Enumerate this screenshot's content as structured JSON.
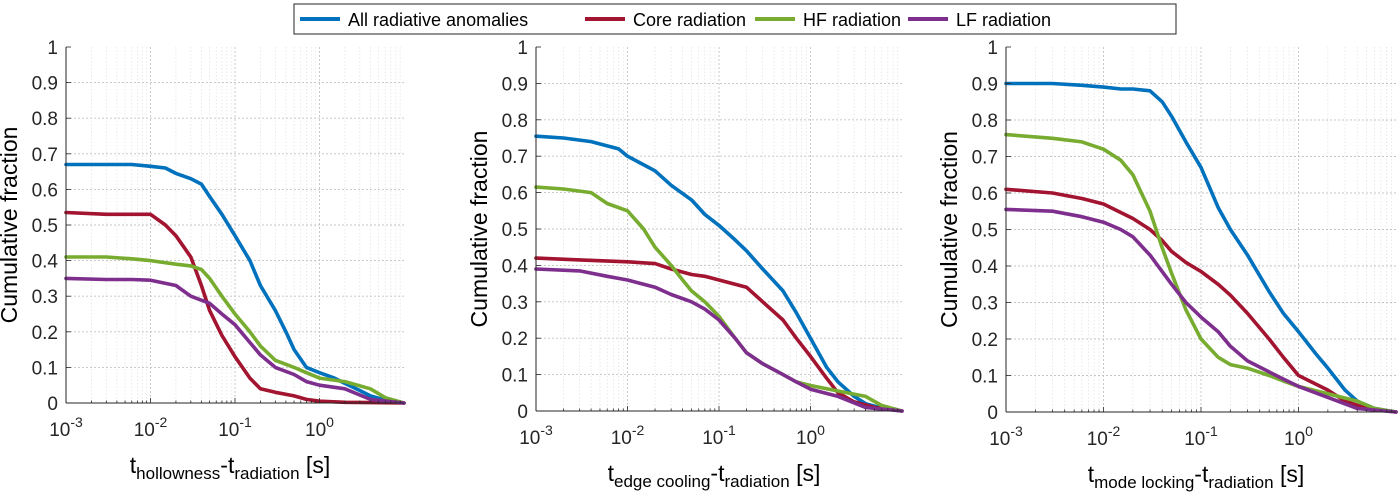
{
  "legend": {
    "placement": "top-center",
    "entries": [
      {
        "label": "All radiative anomalies",
        "color": "#0072BD"
      },
      {
        "label": "Core radiation",
        "color": "#A2142F"
      },
      {
        "label": "HF radiation",
        "color": "#77AC30"
      },
      {
        "label": "LF radiation",
        "color": "#7E2F8E"
      }
    ]
  },
  "chart_data": [
    {
      "type": "line",
      "xscale": "log",
      "xlim": [
        0.001,
        10
      ],
      "ylim": [
        0,
        1
      ],
      "grid": true,
      "ylabel": "Cumulative fraction",
      "xlabel": {
        "main1": "t",
        "sub1": "hollowness",
        "sep": "-",
        "main2": "t",
        "sub2": "radiation",
        "unit": " [s]"
      },
      "xtick_labels": [
        {
          "base": "10",
          "exp": "-3"
        },
        {
          "base": "10",
          "exp": "-2"
        },
        {
          "base": "10",
          "exp": "-1"
        },
        {
          "base": "10",
          "exp": "0"
        }
      ],
      "ytick_labels": [
        "0",
        "0.1",
        "0.2",
        "0.3",
        "0.4",
        "0.5",
        "0.6",
        "0.7",
        "0.8",
        "0.9",
        "1"
      ],
      "series": [
        {
          "name": "All radiative anomalies",
          "x": [
            0.001,
            0.003,
            0.006,
            0.01,
            0.015,
            0.02,
            0.03,
            0.04,
            0.05,
            0.07,
            0.1,
            0.15,
            0.2,
            0.3,
            0.4,
            0.5,
            0.7,
            1,
            1.5,
            2,
            3,
            4,
            6,
            10
          ],
          "y": [
            0.67,
            0.67,
            0.67,
            0.665,
            0.66,
            0.645,
            0.63,
            0.615,
            0.58,
            0.53,
            0.47,
            0.4,
            0.33,
            0.26,
            0.2,
            0.15,
            0.1,
            0.085,
            0.07,
            0.055,
            0.035,
            0.02,
            0.008,
            0
          ]
        },
        {
          "name": "Core radiation",
          "x": [
            0.001,
            0.003,
            0.006,
            0.01,
            0.015,
            0.02,
            0.03,
            0.04,
            0.05,
            0.07,
            0.1,
            0.15,
            0.2,
            0.3,
            0.5,
            0.7,
            1,
            2,
            4,
            10
          ],
          "y": [
            0.535,
            0.53,
            0.53,
            0.53,
            0.5,
            0.47,
            0.41,
            0.33,
            0.26,
            0.19,
            0.13,
            0.07,
            0.04,
            0.03,
            0.02,
            0.01,
            0.005,
            0.002,
            0.001,
            0
          ]
        },
        {
          "name": "HF radiation",
          "x": [
            0.001,
            0.003,
            0.006,
            0.01,
            0.02,
            0.03,
            0.04,
            0.05,
            0.07,
            0.1,
            0.15,
            0.2,
            0.3,
            0.5,
            0.7,
            1,
            2,
            4,
            6,
            10
          ],
          "y": [
            0.41,
            0.41,
            0.405,
            0.4,
            0.39,
            0.385,
            0.375,
            0.35,
            0.3,
            0.25,
            0.2,
            0.16,
            0.12,
            0.1,
            0.085,
            0.07,
            0.06,
            0.04,
            0.015,
            0
          ]
        },
        {
          "name": "LF radiation",
          "x": [
            0.001,
            0.003,
            0.006,
            0.01,
            0.02,
            0.03,
            0.05,
            0.07,
            0.1,
            0.15,
            0.2,
            0.3,
            0.5,
            0.7,
            1,
            2,
            4,
            10
          ],
          "y": [
            0.35,
            0.347,
            0.347,
            0.345,
            0.33,
            0.3,
            0.28,
            0.25,
            0.22,
            0.17,
            0.135,
            0.1,
            0.08,
            0.06,
            0.05,
            0.04,
            0.01,
            0
          ]
        }
      ]
    },
    {
      "type": "line",
      "xscale": "log",
      "xlim": [
        0.001,
        10
      ],
      "ylim": [
        0,
        1
      ],
      "grid": true,
      "ylabel": "Cumulative fraction",
      "xlabel": {
        "main1": "t",
        "sub1": "edge cooling",
        "sep": "-",
        "main2": "t",
        "sub2": "radiation",
        "unit": " [s]"
      },
      "xtick_labels": [
        {
          "base": "10",
          "exp": "-3"
        },
        {
          "base": "10",
          "exp": "-2"
        },
        {
          "base": "10",
          "exp": "-1"
        },
        {
          "base": "10",
          "exp": "0"
        }
      ],
      "ytick_labels": [
        "0",
        "0.1",
        "0.2",
        "0.3",
        "0.4",
        "0.5",
        "0.6",
        "0.7",
        "0.8",
        "0.9",
        "1"
      ],
      "series": [
        {
          "name": "All radiative anomalies",
          "x": [
            0.001,
            0.002,
            0.004,
            0.008,
            0.01,
            0.02,
            0.03,
            0.05,
            0.07,
            0.1,
            0.15,
            0.2,
            0.3,
            0.5,
            0.7,
            1,
            1.5,
            2,
            3,
            4,
            6,
            10
          ],
          "y": [
            0.755,
            0.75,
            0.74,
            0.72,
            0.7,
            0.66,
            0.62,
            0.58,
            0.54,
            0.51,
            0.47,
            0.44,
            0.39,
            0.33,
            0.27,
            0.2,
            0.12,
            0.08,
            0.04,
            0.02,
            0.008,
            0
          ]
        },
        {
          "name": "Core radiation",
          "x": [
            0.001,
            0.003,
            0.01,
            0.02,
            0.03,
            0.05,
            0.07,
            0.1,
            0.2,
            0.3,
            0.5,
            0.7,
            1,
            1.5,
            2,
            3,
            5,
            10
          ],
          "y": [
            0.42,
            0.415,
            0.41,
            0.405,
            0.39,
            0.375,
            0.37,
            0.36,
            0.34,
            0.3,
            0.25,
            0.2,
            0.15,
            0.09,
            0.05,
            0.025,
            0.01,
            0
          ]
        },
        {
          "name": "HF radiation",
          "x": [
            0.001,
            0.002,
            0.004,
            0.006,
            0.01,
            0.015,
            0.02,
            0.03,
            0.04,
            0.05,
            0.07,
            0.1,
            0.15,
            0.2,
            0.3,
            0.5,
            0.7,
            1,
            2,
            4,
            6,
            10
          ],
          "y": [
            0.615,
            0.61,
            0.6,
            0.57,
            0.55,
            0.5,
            0.45,
            0.4,
            0.36,
            0.33,
            0.3,
            0.26,
            0.2,
            0.16,
            0.13,
            0.1,
            0.08,
            0.07,
            0.055,
            0.04,
            0.015,
            0
          ]
        },
        {
          "name": "LF radiation",
          "x": [
            0.001,
            0.003,
            0.006,
            0.01,
            0.02,
            0.03,
            0.05,
            0.07,
            0.1,
            0.15,
            0.2,
            0.3,
            0.5,
            0.7,
            1,
            2,
            4,
            10
          ],
          "y": [
            0.39,
            0.385,
            0.37,
            0.36,
            0.34,
            0.32,
            0.3,
            0.28,
            0.25,
            0.2,
            0.16,
            0.13,
            0.1,
            0.08,
            0.06,
            0.04,
            0.01,
            0
          ]
        }
      ]
    },
    {
      "type": "line",
      "xscale": "log",
      "xlim": [
        0.001,
        10
      ],
      "ylim": [
        0,
        1
      ],
      "grid": true,
      "ylabel": "Cumulative fraction",
      "xlabel": {
        "main1": "t",
        "sub1": "mode locking",
        "sep": "-",
        "main2": "t",
        "sub2": "radiation",
        "unit": " [s]"
      },
      "xtick_labels": [
        {
          "base": "10",
          "exp": "-3"
        },
        {
          "base": "10",
          "exp": "-2"
        },
        {
          "base": "10",
          "exp": "-1"
        },
        {
          "base": "10",
          "exp": "0"
        }
      ],
      "ytick_labels": [
        "0",
        "0.1",
        "0.2",
        "0.3",
        "0.4",
        "0.5",
        "0.6",
        "0.7",
        "0.8",
        "0.9",
        "1"
      ],
      "series": [
        {
          "name": "All radiative anomalies",
          "x": [
            0.001,
            0.003,
            0.006,
            0.01,
            0.015,
            0.02,
            0.03,
            0.04,
            0.05,
            0.07,
            0.1,
            0.15,
            0.2,
            0.3,
            0.5,
            0.7,
            1,
            1.5,
            2,
            3,
            4,
            6,
            10
          ],
          "y": [
            0.9,
            0.9,
            0.895,
            0.89,
            0.885,
            0.885,
            0.88,
            0.85,
            0.81,
            0.74,
            0.67,
            0.56,
            0.5,
            0.43,
            0.33,
            0.27,
            0.22,
            0.16,
            0.12,
            0.06,
            0.03,
            0.01,
            0
          ]
        },
        {
          "name": "Core radiation",
          "x": [
            0.001,
            0.003,
            0.006,
            0.01,
            0.02,
            0.03,
            0.04,
            0.05,
            0.07,
            0.1,
            0.15,
            0.2,
            0.3,
            0.5,
            0.7,
            1,
            2,
            3,
            5,
            10
          ],
          "y": [
            0.61,
            0.6,
            0.585,
            0.57,
            0.53,
            0.5,
            0.47,
            0.44,
            0.41,
            0.385,
            0.35,
            0.32,
            0.27,
            0.2,
            0.15,
            0.1,
            0.06,
            0.03,
            0.01,
            0
          ]
        },
        {
          "name": "HF radiation",
          "x": [
            0.001,
            0.003,
            0.006,
            0.01,
            0.015,
            0.02,
            0.03,
            0.04,
            0.05,
            0.07,
            0.1,
            0.15,
            0.2,
            0.3,
            0.5,
            0.7,
            1,
            2,
            4,
            6,
            10
          ],
          "y": [
            0.76,
            0.75,
            0.74,
            0.72,
            0.69,
            0.65,
            0.55,
            0.45,
            0.38,
            0.28,
            0.2,
            0.15,
            0.13,
            0.12,
            0.1,
            0.085,
            0.07,
            0.05,
            0.03,
            0.01,
            0
          ]
        },
        {
          "name": "LF radiation",
          "x": [
            0.001,
            0.003,
            0.006,
            0.01,
            0.015,
            0.02,
            0.03,
            0.05,
            0.07,
            0.1,
            0.15,
            0.2,
            0.3,
            0.5,
            0.7,
            1,
            2,
            4,
            10
          ],
          "y": [
            0.555,
            0.55,
            0.535,
            0.52,
            0.5,
            0.48,
            0.43,
            0.35,
            0.3,
            0.26,
            0.22,
            0.18,
            0.14,
            0.11,
            0.09,
            0.07,
            0.04,
            0.01,
            0
          ]
        }
      ]
    }
  ]
}
